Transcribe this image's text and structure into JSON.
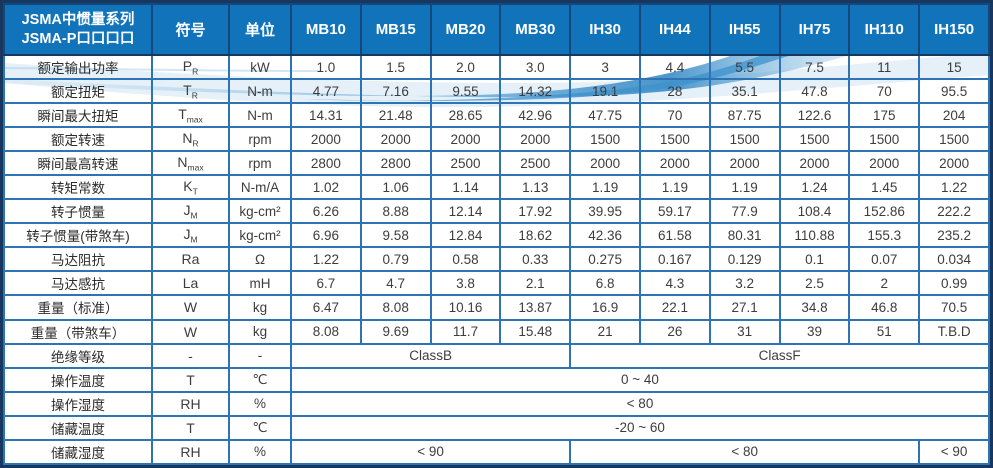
{
  "table": {
    "title_line1": "JSMA中惯量系列",
    "title_line2": "JSMA-P口口口口",
    "col_symbol": "符号",
    "col_unit": "单位",
    "models": [
      "MB10",
      "MB15",
      "MB20",
      "MB30",
      "IH30",
      "IH44",
      "IH55",
      "IH75",
      "IH110",
      "IH150"
    ],
    "rows": [
      {
        "label": "额定输出功率",
        "sym": "P",
        "sub": "R",
        "unit": "kW",
        "values": [
          "1.0",
          "1.5",
          "2.0",
          "3.0",
          "3",
          "4.4",
          "5.5",
          "7.5",
          "11",
          "15"
        ]
      },
      {
        "label": "额定扭矩",
        "sym": "T",
        "sub": "R",
        "unit": "N-m",
        "values": [
          "4.77",
          "7.16",
          "9.55",
          "14.32",
          "19.1",
          "28",
          "35.1",
          "47.8",
          "70",
          "95.5"
        ]
      },
      {
        "label": "瞬间最大扭矩",
        "sym": "T",
        "sub": "max",
        "unit": "N-m",
        "values": [
          "14.31",
          "21.48",
          "28.65",
          "42.96",
          "47.75",
          "70",
          "87.75",
          "122.6",
          "175",
          "204"
        ]
      },
      {
        "label": "额定转速",
        "sym": "N",
        "sub": "R",
        "unit": "rpm",
        "values": [
          "2000",
          "2000",
          "2000",
          "2000",
          "1500",
          "1500",
          "1500",
          "1500",
          "1500",
          "1500"
        ]
      },
      {
        "label": "瞬间最高转速",
        "sym": "N",
        "sub": "max",
        "unit": "rpm",
        "values": [
          "2800",
          "2800",
          "2500",
          "2500",
          "2000",
          "2000",
          "2000",
          "2000",
          "2000",
          "2000"
        ]
      },
      {
        "label": "转矩常数",
        "sym": "K",
        "sub": "T",
        "unit": "N-m/A",
        "values": [
          "1.02",
          "1.06",
          "1.14",
          "1.13",
          "1.19",
          "1.19",
          "1.19",
          "1.24",
          "1.45",
          "1.22"
        ]
      },
      {
        "label": "转子惯量",
        "sym": "J",
        "sub": "M",
        "unit": "kg-cm²",
        "values": [
          "6.26",
          "8.88",
          "12.14",
          "17.92",
          "39.95",
          "59.17",
          "77.9",
          "108.4",
          "152.86",
          "222.2"
        ]
      },
      {
        "label": "转子惯量(带煞车)",
        "sym": "J",
        "sub": "M",
        "unit": "kg-cm²",
        "values": [
          "6.96",
          "9.58",
          "12.84",
          "18.62",
          "42.36",
          "61.58",
          "80.31",
          "110.88",
          "155.3",
          "235.2"
        ]
      },
      {
        "label": "马达阻抗",
        "sym": "Ra",
        "sub": "",
        "unit": "Ω",
        "values": [
          "1.22",
          "0.79",
          "0.58",
          "0.33",
          "0.275",
          "0.167",
          "0.129",
          "0.1",
          "0.07",
          "0.034"
        ]
      },
      {
        "label": "马达感抗",
        "sym": "La",
        "sub": "",
        "unit": "mH",
        "values": [
          "6.7",
          "4.7",
          "3.8",
          "2.1",
          "6.8",
          "4.3",
          "3.2",
          "2.5",
          "2",
          "0.99"
        ]
      },
      {
        "label": "重量（标准）",
        "sym": "W",
        "sub": "",
        "unit": "kg",
        "values": [
          "6.47",
          "8.08",
          "10.16",
          "13.87",
          "16.9",
          "22.1",
          "27.1",
          "34.8",
          "46.8",
          "70.5"
        ]
      },
      {
        "label": "重量（带煞车）",
        "sym": "W",
        "sub": "",
        "unit": "kg",
        "values": [
          "8.08",
          "9.69",
          "11.7",
          "15.48",
          "21",
          "26",
          "31",
          "39",
          "51",
          "T.B.D"
        ]
      },
      {
        "label": "绝缘等级",
        "sym": "-",
        "sub": "",
        "unit": "-",
        "spans": [
          {
            "text": "ClassB",
            "cols": 4
          },
          {
            "text": "ClassF",
            "cols": 6
          }
        ]
      },
      {
        "label": "操作温度",
        "sym": "T",
        "sub": "",
        "unit": "℃",
        "spans": [
          {
            "text": "0 ~ 40",
            "cols": 10
          }
        ]
      },
      {
        "label": "操作湿度",
        "sym": "RH",
        "sub": "",
        "unit": "%",
        "spans": [
          {
            "text": "< 80",
            "cols": 10
          }
        ]
      },
      {
        "label": "储藏温度",
        "sym": "T",
        "sub": "",
        "unit": "℃",
        "spans": [
          {
            "text": "-20 ~ 60",
            "cols": 10
          }
        ]
      },
      {
        "label": "储藏湿度",
        "sym": "RH",
        "sub": "",
        "unit": "%",
        "spans": [
          {
            "text": "< 90",
            "cols": 4
          },
          {
            "text": "< 80",
            "cols": 5
          },
          {
            "text": "< 90",
            "cols": 1
          }
        ]
      }
    ]
  },
  "colors": {
    "header_bg": "#1173b9",
    "header_divider": "#14477c",
    "grid_line": "#2e74b5",
    "outer_border": "#17375e",
    "body_text": "#3d3d3d",
    "wave_blue": "#4f9fd4",
    "wave_light": "#cfe4f3"
  }
}
